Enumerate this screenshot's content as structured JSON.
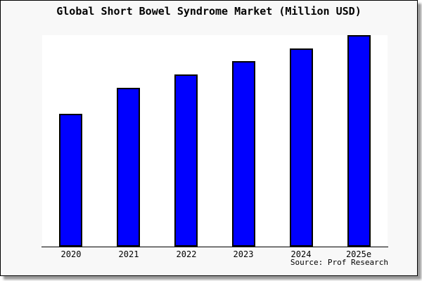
{
  "window": {
    "card_background": "#f8f8f8",
    "frame_color": "#000000",
    "shadow_color": "#999999"
  },
  "chart_data": {
    "type": "bar",
    "title": "Global Short Bowel Syndrome Market (Million USD)",
    "categories": [
      "2020",
      "2021",
      "2022",
      "2023",
      "2024",
      "2025e"
    ],
    "values": [
      189,
      226,
      245,
      264,
      282,
      301
    ],
    "values_note": "relative bar heights in px; chart shows no y-axis scale or numeric labels",
    "xlabel": "",
    "ylabel": "",
    "y_axis": "none",
    "grid": false,
    "legend": false,
    "plot_background": "#ffffff",
    "bar_color": "#0000ff",
    "bar_border_color": "#000000",
    "source_label": "Source: Prof Research"
  }
}
